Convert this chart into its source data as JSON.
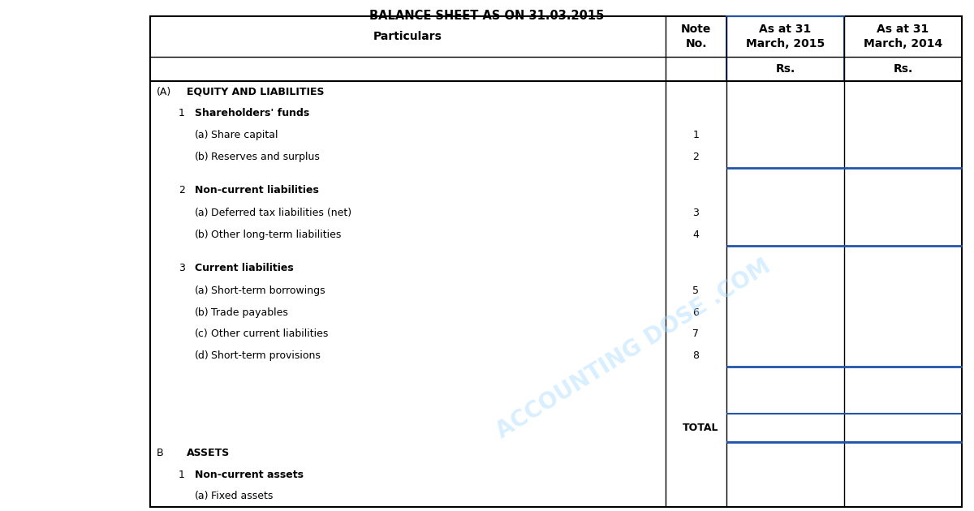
{
  "title": "BALANCE SHEET AS ON 31.03.2015",
  "title_fontsize": 10.5,
  "background_color": "#ffffff",
  "table_line_color": "#000000",
  "blue_line_color": "#2255aa",
  "header_texts": [
    "Particulars",
    "Note\nNo.",
    "As at 31\nMarch, 2015",
    "As at 31\nMarch, 2014"
  ],
  "rs_row": [
    "",
    "",
    "Rs.",
    "Rs."
  ],
  "font_size_header": 10,
  "font_size_body": 9,
  "rows": [
    {
      "col_A": "(A)",
      "col_B": "EQUITY AND LIABILITIES",
      "note": "",
      "bold_A": false,
      "bold_B": true,
      "indent_B": 0,
      "type": "section_header",
      "blue_line_after": false,
      "spacer_before": false
    },
    {
      "col_A": "1",
      "col_B": "Shareholders' funds",
      "note": "",
      "bold_A": false,
      "bold_B": true,
      "indent_B": 1,
      "type": "sub_header",
      "blue_line_after": false,
      "spacer_before": false
    },
    {
      "col_A": "(a)",
      "col_B": "Share capital",
      "note": "1",
      "bold_A": false,
      "bold_B": false,
      "indent_B": 2,
      "type": "item",
      "blue_line_after": false,
      "spacer_before": false
    },
    {
      "col_A": "(b)",
      "col_B": "Reserves and surplus",
      "note": "2",
      "bold_A": false,
      "bold_B": false,
      "indent_B": 2,
      "type": "item",
      "blue_line_after": true,
      "spacer_before": false
    },
    {
      "col_A": "2",
      "col_B": "Non-current liabilities",
      "note": "",
      "bold_A": false,
      "bold_B": true,
      "indent_B": 1,
      "type": "sub_header",
      "blue_line_after": false,
      "spacer_before": true
    },
    {
      "col_A": "(a)",
      "col_B": "Deferred tax liabilities (net)",
      "note": "3",
      "bold_A": false,
      "bold_B": false,
      "indent_B": 2,
      "type": "item",
      "blue_line_after": false,
      "spacer_before": false
    },
    {
      "col_A": "(b)",
      "col_B": "Other long-term liabilities",
      "note": "4",
      "bold_A": false,
      "bold_B": false,
      "indent_B": 2,
      "type": "item",
      "blue_line_after": true,
      "spacer_before": false
    },
    {
      "col_A": "3",
      "col_B": "Current liabilities",
      "note": "",
      "bold_A": false,
      "bold_B": true,
      "indent_B": 1,
      "type": "sub_header",
      "blue_line_after": false,
      "spacer_before": true
    },
    {
      "col_A": "(a)",
      "col_B": "Short-term borrowings",
      "note": "5",
      "bold_A": false,
      "bold_B": false,
      "indent_B": 2,
      "type": "item",
      "blue_line_after": false,
      "spacer_before": false
    },
    {
      "col_A": "(b)",
      "col_B": "Trade payables",
      "note": "6",
      "bold_A": false,
      "bold_B": false,
      "indent_B": 2,
      "type": "item",
      "blue_line_after": false,
      "spacer_before": false
    },
    {
      "col_A": "(c)",
      "col_B": "Other current liabilities",
      "note": "7",
      "bold_A": false,
      "bold_B": false,
      "indent_B": 2,
      "type": "item",
      "blue_line_after": false,
      "spacer_before": false
    },
    {
      "col_A": "(d)",
      "col_B": "Short-term provisions",
      "note": "8",
      "bold_A": false,
      "bold_B": false,
      "indent_B": 2,
      "type": "item",
      "blue_line_after": true,
      "spacer_before": false
    },
    {
      "col_A": "",
      "col_B": "",
      "note": "",
      "bold_A": false,
      "bold_B": false,
      "indent_B": 0,
      "type": "spacer",
      "blue_line_after": false,
      "spacer_before": false
    },
    {
      "col_A": "",
      "col_B": "TOTAL",
      "note": "",
      "bold_A": false,
      "bold_B": true,
      "indent_B": 2,
      "type": "total",
      "blue_line_after": true,
      "spacer_before": false
    },
    {
      "col_A": "B",
      "col_B": "ASSETS",
      "note": "",
      "bold_A": false,
      "bold_B": true,
      "indent_B": 0,
      "type": "section_header",
      "blue_line_after": false,
      "spacer_before": false
    },
    {
      "col_A": "1",
      "col_B": "Non-current assets",
      "note": "",
      "bold_A": false,
      "bold_B": true,
      "indent_B": 1,
      "type": "sub_header",
      "blue_line_after": false,
      "spacer_before": false
    },
    {
      "col_A": "(a)",
      "col_B": "Fixed assets",
      "note": "",
      "bold_A": false,
      "bold_B": false,
      "indent_B": 2,
      "type": "item",
      "blue_line_after": false,
      "spacer_before": false
    }
  ]
}
